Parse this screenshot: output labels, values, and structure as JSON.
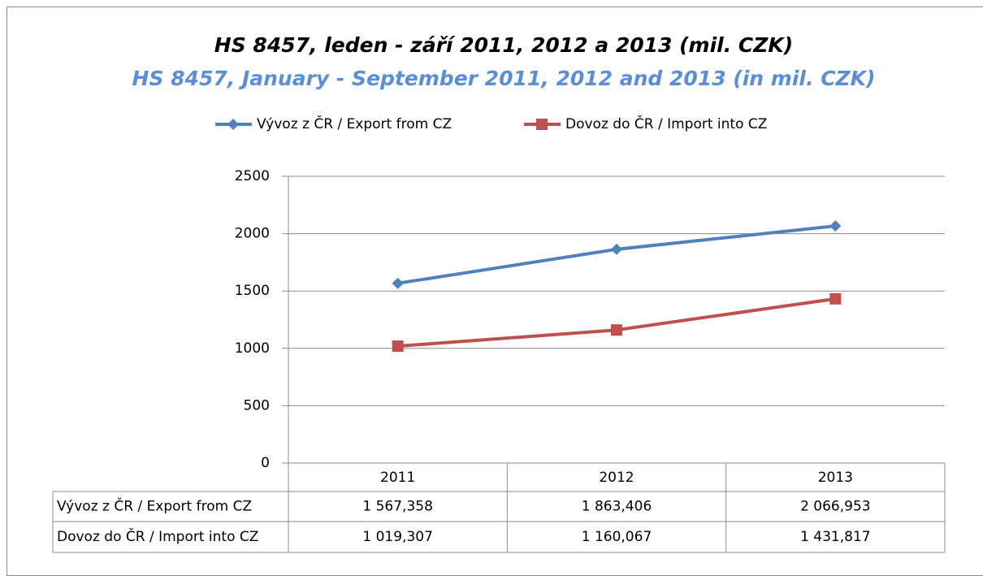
{
  "chart_data": {
    "type": "line",
    "title": "HS 8457, leden - září 2011, 2012 a 2013 (mil. CZK)",
    "subtitle": "HS 8457, January - September 2011, 2012 and 2013 (in mil. CZK)",
    "categories": [
      "2011",
      "2012",
      "2013"
    ],
    "series": [
      {
        "name": "Vývoz z ČR / Export from CZ",
        "color": "#4f81bd",
        "marker": "diamond",
        "values": [
          1567.358,
          1863.406,
          2066.953
        ],
        "value_labels": [
          "1 567,358",
          "1 863,406",
          "2 066,953"
        ]
      },
      {
        "name": "Dovoz do ČR / Import into CZ",
        "color": "#c0504d",
        "marker": "square",
        "values": [
          1019.307,
          1160.067,
          1431.817
        ],
        "value_labels": [
          "1 019,307",
          "1 160,067",
          "1 431,817"
        ]
      }
    ],
    "ylim": [
      0,
      2500
    ],
    "yticks": [
      0,
      500,
      1000,
      1500,
      2000,
      2500
    ],
    "grid": true,
    "legend": "top"
  }
}
